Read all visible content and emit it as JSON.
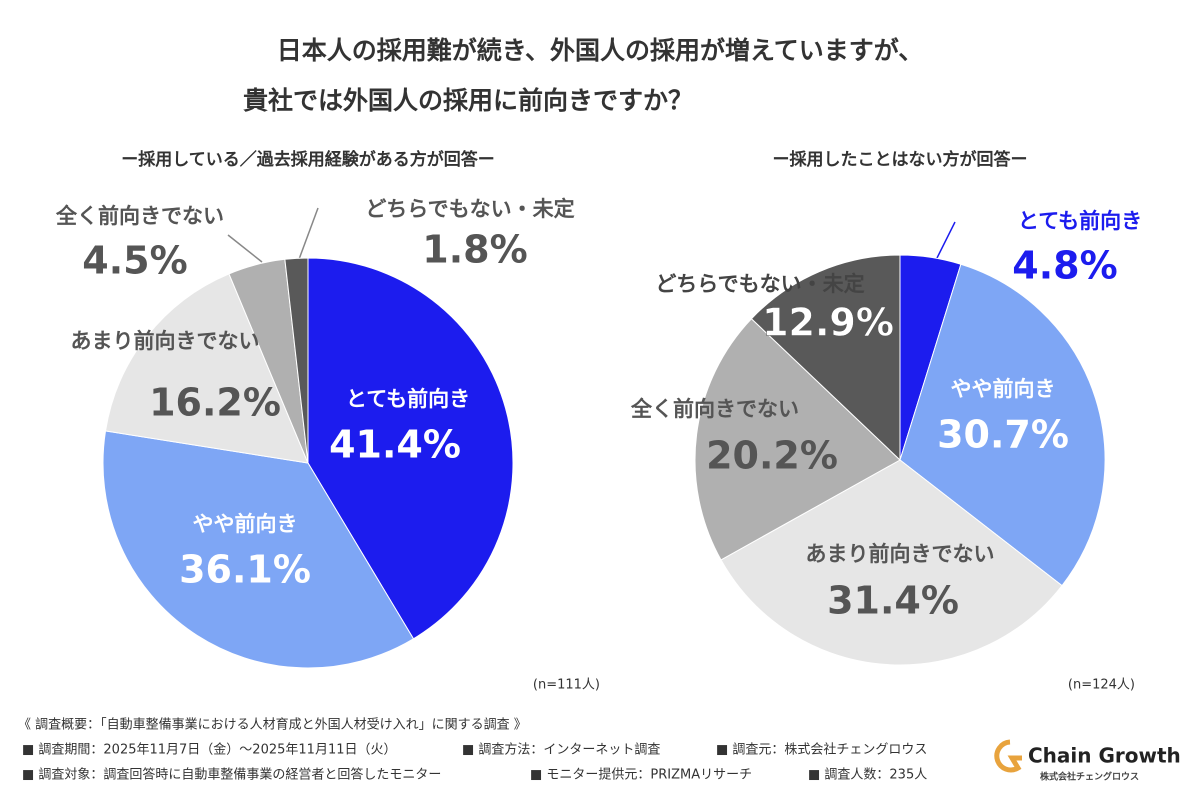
{
  "title": [
    "日本人の採用難が続き、外国人の採用が増えていますが、",
    "貴社では外国人の採用に前向きですか？"
  ],
  "chart_data": [
    {
      "type": "pie",
      "subtitle": "ー採用している／過去採用経験がある方が回答ー",
      "note": "(n=111人)",
      "categories": [
        "とても前向き",
        "やや前向き",
        "あまり前向きでない",
        "全く前向きでない",
        "どちらでもない・未定"
      ],
      "values": [
        41.4,
        36.1,
        16.2,
        4.5,
        1.8
      ],
      "value_labels": [
        "41.4%",
        "36.1%",
        "16.2%",
        "4.5%",
        "1.8%"
      ],
      "colors": [
        "#1c1cee",
        "#7ea6f5",
        "#e6e6e6",
        "#b0b0b0",
        "#595959"
      ]
    },
    {
      "type": "pie",
      "subtitle": "ー採用したことはない方が回答ー",
      "note": "(n=124人)",
      "categories": [
        "とても前向き",
        "やや前向き",
        "あまり前向きでない",
        "全く前向きでない",
        "どちらでもない・未定"
      ],
      "values": [
        4.8,
        30.7,
        31.4,
        20.2,
        12.9
      ],
      "value_labels": [
        "4.8%",
        "30.7%",
        "31.4%",
        "20.2%",
        "12.9%"
      ],
      "colors": [
        "#1c1cee",
        "#7ea6f5",
        "#e6e6e6",
        "#b0b0b0",
        "#595959"
      ]
    }
  ],
  "footer": [
    "《 調査概要：「自動車整備事業における人材育成と外国人材受け入れ」に関する調査 》",
    "■ 調査期間：2025年11月7日（金）～2025年11月11日（火）",
    "■ 調査方法：インターネット調査",
    "■ 調査元：株式会社チェングロウス",
    "■ 調査対象：調査回答時に自動車整備事業の経営者と回答したモニター",
    "■ モニター提供元：PRIZMAリサーチ",
    "■ 調査人数：235人"
  ],
  "logo": {
    "name": "Chain Growth",
    "company": "株式会社チェングロウス"
  }
}
